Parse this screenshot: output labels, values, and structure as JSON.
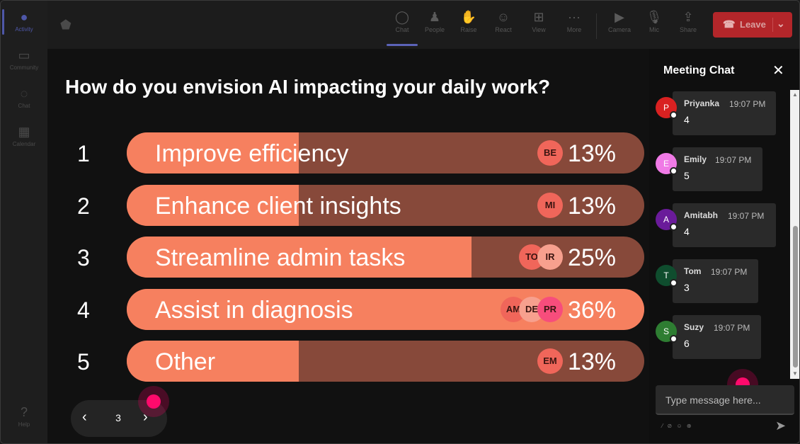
{
  "rail": {
    "items": [
      {
        "label": "Activity",
        "icon": "bell-icon",
        "glyph": "🔔",
        "active": true
      },
      {
        "label": "Community",
        "icon": "community-icon",
        "glyph": "▭",
        "active": false
      },
      {
        "label": "Chat",
        "icon": "chat-icon",
        "glyph": "◌",
        "active": false
      },
      {
        "label": "Calendar",
        "icon": "calendar-icon",
        "glyph": "▦",
        "active": false
      },
      {
        "label": "Help",
        "icon": "help-icon",
        "glyph": "?",
        "active": false
      }
    ]
  },
  "toolbar": {
    "buttons": [
      {
        "label": "Chat",
        "icon": "chat-icon",
        "glyph": "◯",
        "active": true
      },
      {
        "label": "People",
        "icon": "people-icon",
        "glyph": "♟",
        "active": false
      },
      {
        "label": "Raise",
        "icon": "raise-hand-icon",
        "glyph": "✋",
        "active": false
      },
      {
        "label": "React",
        "icon": "react-icon",
        "glyph": "☺",
        "active": false
      },
      {
        "label": "View",
        "icon": "view-icon",
        "glyph": "⊞",
        "active": false
      },
      {
        "label": "More",
        "icon": "more-icon",
        "glyph": "···",
        "active": false
      },
      {
        "label": "Camera",
        "icon": "camera-icon",
        "glyph": "▶",
        "active": false
      },
      {
        "label": "Mic",
        "icon": "mic-icon",
        "glyph": "🎙",
        "active": false
      },
      {
        "label": "Share",
        "icon": "share-icon",
        "glyph": "⇪",
        "active": false
      }
    ],
    "leave_label": "Leave"
  },
  "poll": {
    "question": "How do you envision AI impacting your daily work?",
    "options": [
      {
        "num": "1",
        "label": "Improve efficiency",
        "percent_text": "13%",
        "share": 0.13,
        "voters": [
          {
            "initials": "BE",
            "color": "#f0665a"
          }
        ]
      },
      {
        "num": "2",
        "label": "Enhance client insights",
        "percent_text": "13%",
        "share": 0.13,
        "voters": [
          {
            "initials": "MI",
            "color": "#f0665a"
          }
        ]
      },
      {
        "num": "3",
        "label": "Streamline admin tasks",
        "percent_text": "25%",
        "share": 0.25,
        "voters": [
          {
            "initials": "TO",
            "color": "#f0665a"
          },
          {
            "initials": "IR",
            "color": "#f7a08e"
          }
        ]
      },
      {
        "num": "4",
        "label": "Assist in diagnosis",
        "percent_text": "36%",
        "share": 0.36,
        "voters": [
          {
            "initials": "AM",
            "color": "#f0665a"
          },
          {
            "initials": "DE",
            "color": "#f7a08e"
          },
          {
            "initials": "PR",
            "color": "#f74d7c"
          }
        ]
      },
      {
        "num": "5",
        "label": "Other",
        "percent_text": "13%",
        "share": 0.13,
        "voters": [
          {
            "initials": "EM",
            "color": "#f0665a"
          }
        ]
      }
    ]
  },
  "pager": {
    "page": "3",
    "prev_glyph": "‹",
    "next_glyph": "›"
  },
  "chat": {
    "title": "Meeting Chat",
    "close_glyph": "✕",
    "messages": [
      {
        "initial": "P",
        "name": "Priyanka",
        "time": "19:07 PM",
        "text": "4",
        "color": "#d92121"
      },
      {
        "initial": "E",
        "name": "Emily",
        "time": "19:07 PM",
        "text": "5",
        "color": "#f07ae6"
      },
      {
        "initial": "A",
        "name": "Amitabh",
        "time": "19:07 PM",
        "text": "4",
        "color": "#6a1b9a"
      },
      {
        "initial": "T",
        "name": "Tom",
        "time": "19:07 PM",
        "text": "3",
        "color": "#0f4d2e"
      },
      {
        "initial": "S",
        "name": "Suzy",
        "time": "19:07 PM",
        "text": "6",
        "color": "#2e7d32"
      }
    ],
    "compose_placeholder": "Type message here...",
    "send_glyph": "➤"
  }
}
